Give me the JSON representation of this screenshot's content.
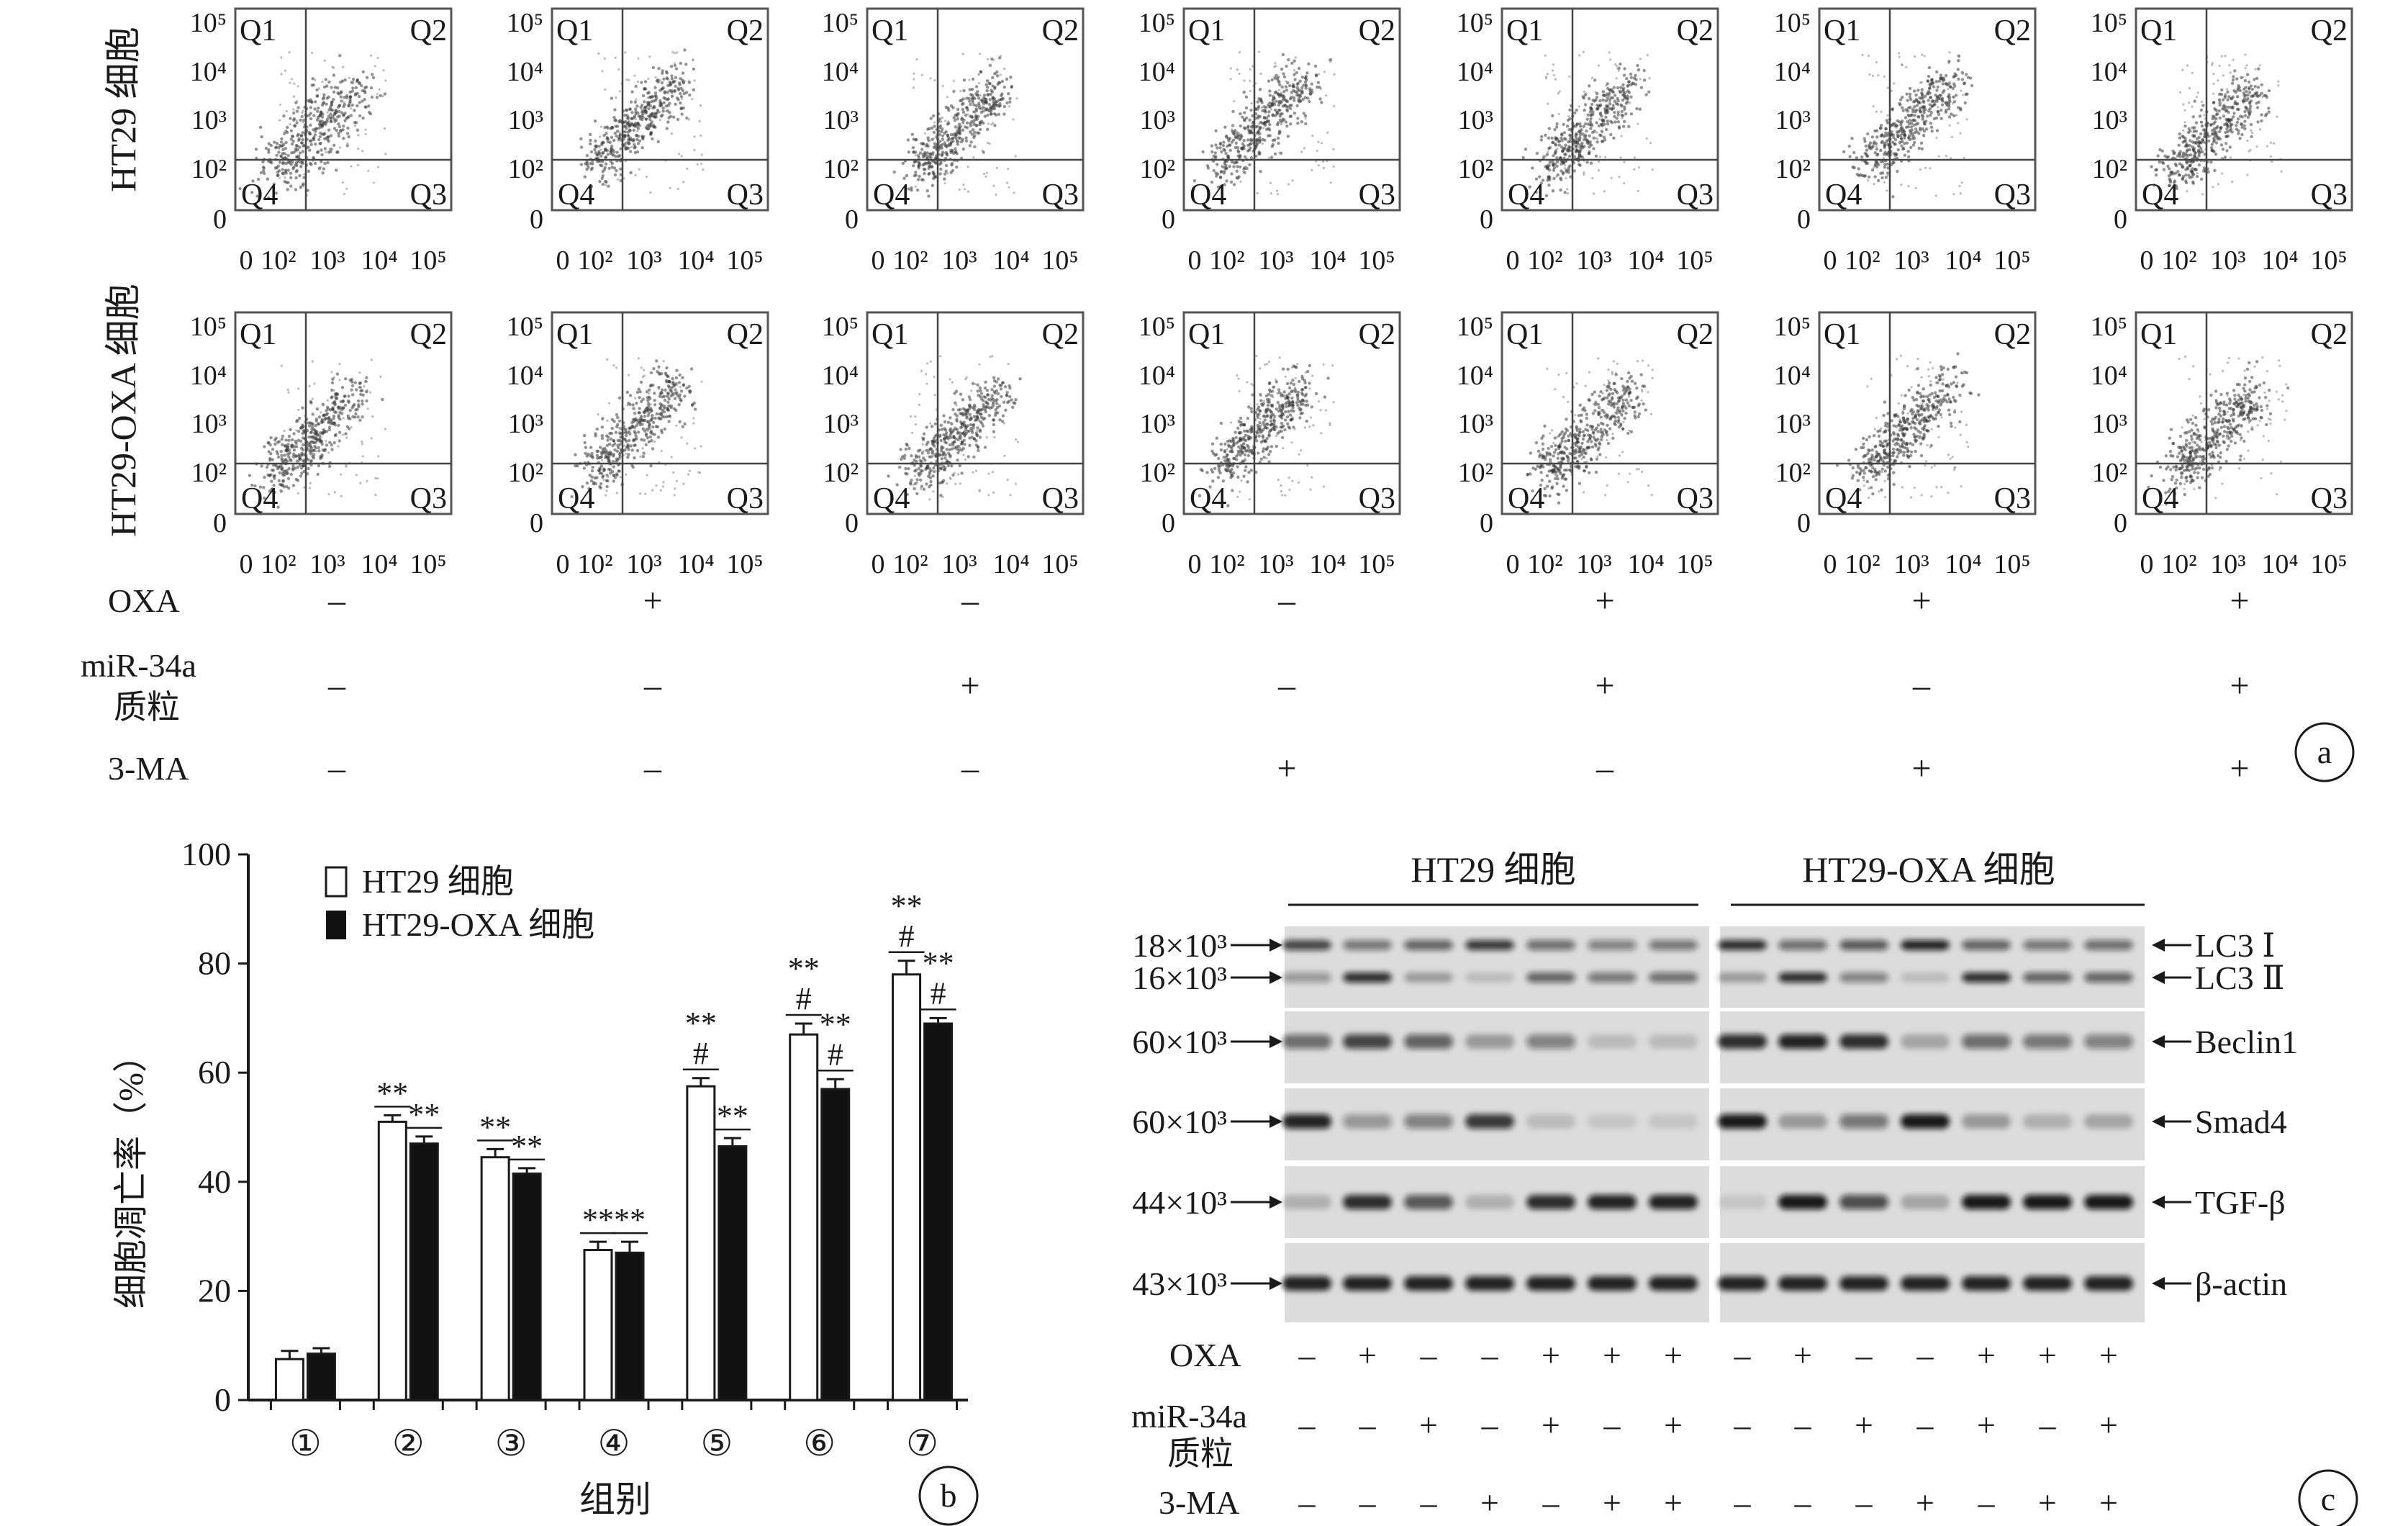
{
  "panel_a": {
    "row_labels": [
      "HT29 细胞",
      "HT29-OXA 细胞"
    ],
    "quadrants": [
      "Q1",
      "Q2",
      "Q3",
      "Q4"
    ],
    "y_ticks": [
      "10⁵",
      "10⁴",
      "10³",
      "10²",
      "0"
    ],
    "x_ticks": [
      "0",
      "10²",
      "10³",
      "10⁴",
      "10⁵"
    ],
    "conditions": [
      {
        "label": "OXA",
        "signs": [
          "–",
          "+",
          "–",
          "–",
          "+",
          "+",
          "+"
        ]
      },
      {
        "label": "miR-34a",
        "label2": "质粒",
        "signs": [
          "–",
          "–",
          "+",
          "–",
          "+",
          "–",
          "+"
        ]
      },
      {
        "label": "3-MA",
        "signs": [
          "–",
          "–",
          "–",
          "+",
          "–",
          "+",
          "+"
        ]
      }
    ],
    "badge": "a"
  },
  "panel_b": {
    "badge": "b",
    "ylabel": "细胞凋亡率（%）",
    "xlabel": "组别",
    "sig_double": "**",
    "sig_hash": "#",
    "chart_data": {
      "type": "bar",
      "categories": [
        "①",
        "②",
        "③",
        "④",
        "⑤",
        "⑥",
        "⑦"
      ],
      "ylim": [
        0,
        100
      ],
      "yticks": [
        0,
        20,
        40,
        60,
        80,
        100
      ],
      "legend_position": "top-left",
      "series": [
        {
          "name": "HT29 细胞",
          "color": "#ffffff",
          "values": [
            7.5,
            51,
            44.5,
            27.5,
            57.5,
            67,
            78
          ],
          "errors": [
            1.5,
            1.2,
            1.5,
            1.5,
            1.5,
            2.0,
            2.5
          ],
          "marks": [
            [],
            [
              "**"
            ],
            [
              "**"
            ],
            [
              "**"
            ],
            [
              "#",
              "**"
            ],
            [
              "#",
              "**"
            ],
            [
              "#",
              "**"
            ]
          ]
        },
        {
          "name": "HT29-OXA 细胞",
          "color": "#111111",
          "values": [
            8.5,
            47,
            41.5,
            27,
            46.5,
            57,
            69
          ],
          "errors": [
            1.0,
            1.3,
            1.0,
            2.0,
            1.5,
            1.8,
            1.0
          ],
          "marks": [
            [],
            [
              "**"
            ],
            [
              "**"
            ],
            [
              "**"
            ],
            [
              "**"
            ],
            [
              "#",
              "**"
            ],
            [
              "#",
              "**"
            ]
          ]
        }
      ]
    }
  },
  "panel_c": {
    "badge": "c",
    "groups": [
      "HT29 细胞",
      "HT29-OXA 细胞"
    ],
    "rows": [
      {
        "mw": "18×10³",
        "protein": "LC3 Ⅰ"
      },
      {
        "mw": "16×10³",
        "protein": "LC3 Ⅱ"
      },
      {
        "mw": "60×10³",
        "protein": "Beclin1"
      },
      {
        "mw": "60×10³",
        "protein": "Smad4"
      },
      {
        "mw": "44×10³",
        "protein": "TGF-β"
      },
      {
        "mw": "43×10³",
        "protein": "β-actin"
      }
    ],
    "conditions": [
      {
        "label": "OXA",
        "signs": [
          "–",
          "+",
          "–",
          "–",
          "+",
          "+",
          "+",
          "–",
          "+",
          "–",
          "–",
          "+",
          "+",
          "+"
        ]
      },
      {
        "label": "miR-34a",
        "label2": "质粒",
        "signs": [
          "–",
          "–",
          "+",
          "–",
          "+",
          "–",
          "+",
          "–",
          "–",
          "+",
          "–",
          "+",
          "–",
          "+"
        ]
      },
      {
        "label": "3-MA",
        "signs": [
          "–",
          "–",
          "–",
          "+",
          "–",
          "+",
          "+",
          "–",
          "–",
          "–",
          "+",
          "–",
          "+",
          "+"
        ]
      }
    ]
  }
}
